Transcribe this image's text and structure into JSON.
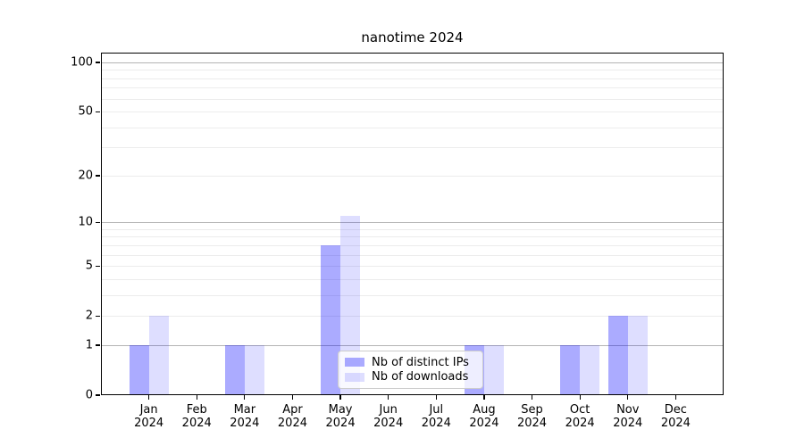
{
  "chart_data": {
    "type": "bar",
    "title": "nanotime 2024",
    "year": "2024",
    "months": [
      "Jan",
      "Feb",
      "Mar",
      "Apr",
      "May",
      "Jun",
      "Jul",
      "Aug",
      "Sep",
      "Oct",
      "Nov",
      "Dec"
    ],
    "categories": [
      "Jan 2024",
      "Feb 2024",
      "Mar 2024",
      "Apr 2024",
      "May 2024",
      "Jun 2024",
      "Jul 2024",
      "Aug 2024",
      "Sep 2024",
      "Oct 2024",
      "Nov 2024",
      "Dec 2024"
    ],
    "series": [
      {
        "name": "Nb of distinct IPs",
        "slug": "distinct-ips",
        "color": "rgba(0, 0, 255, 0.33)",
        "values": [
          1,
          0,
          1,
          0,
          7,
          0,
          0,
          1,
          0,
          1,
          2,
          0
        ]
      },
      {
        "name": "Nb of downloads",
        "slug": "downloads",
        "color": "rgba(0, 0, 255, 0.13)",
        "values": [
          2,
          0,
          1,
          0,
          11,
          0,
          0,
          1,
          0,
          1,
          2,
          0
        ]
      }
    ],
    "y_axis": {
      "scale": "log10(1+y)",
      "tick_values": [
        0,
        1,
        2,
        5,
        10,
        20,
        50,
        100
      ],
      "major_gridlines": [
        1,
        10,
        100
      ],
      "minor_gridlines": [
        2,
        3,
        4,
        5,
        6,
        7,
        8,
        9,
        20,
        30,
        40,
        50,
        60,
        70,
        80,
        90
      ],
      "ylim": [
        0,
        115
      ]
    },
    "xlabel": "",
    "ylabel": "",
    "grid": "horizontal",
    "legend": {
      "position": "lower center",
      "entries": [
        "Nb of distinct IPs",
        "Nb of downloads"
      ]
    },
    "colors": {
      "bar_distinct_ips_on_white": "#a8a8f8",
      "bar_downloads_on_white": "#dcdcfa",
      "major_grid": "#b4b4b4",
      "minor_grid": "#ececec",
      "axis": "#000000",
      "legend_border": "#cccccc"
    }
  }
}
